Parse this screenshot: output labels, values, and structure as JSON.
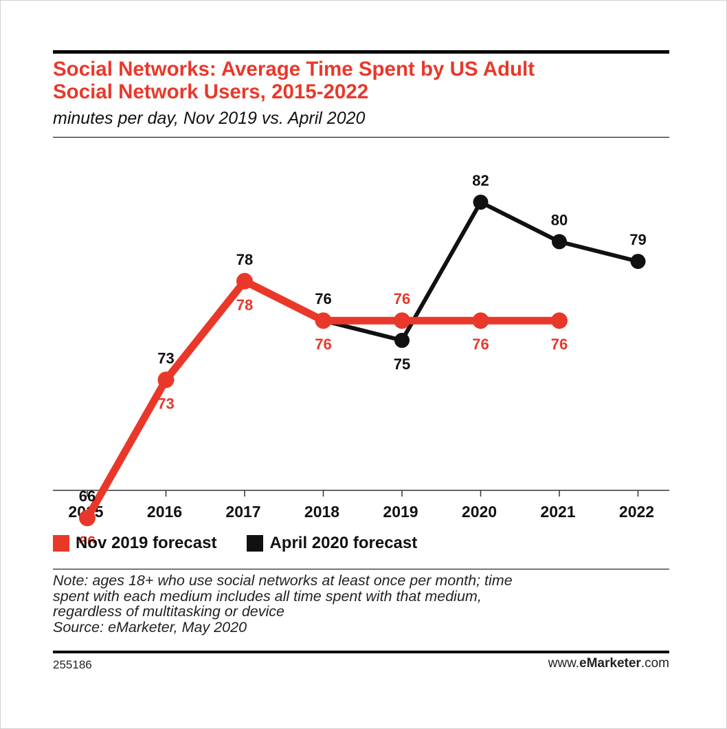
{
  "title_lines": [
    "Social Networks: Average Time Spent by US Adult",
    "Social Network Users, 2015-2022"
  ],
  "subtitle": "minutes per day, Nov 2019 vs. April 2020",
  "colors": {
    "red": "#e9382a",
    "black": "#111111",
    "rule": "#000000"
  },
  "chart_data": {
    "type": "line",
    "title": "Social Networks: Average Time Spent by US Adult Social Network Users, 2015-2022",
    "subtitle": "minutes per day, Nov 2019 vs. April 2020",
    "x": [
      "2015",
      "2016",
      "2017",
      "2018",
      "2019",
      "2020",
      "2021",
      "2022"
    ],
    "series": [
      {
        "name": "Nov 2019 forecast",
        "color": "#e9382a",
        "values": [
          66,
          73,
          78,
          76,
          76,
          76,
          76,
          null
        ]
      },
      {
        "name": "April 2020 forecast",
        "color": "#111111",
        "values": [
          66,
          73,
          78,
          76,
          75,
          82,
          80,
          79
        ]
      }
    ],
    "ylim": [
      40,
      90
    ],
    "grid": false,
    "legend": "bottom-left"
  },
  "legend": [
    {
      "label": "Nov 2019 forecast",
      "color": "#e9382a"
    },
    {
      "label": "April 2020 forecast",
      "color": "#111111"
    }
  ],
  "note_lines": [
    "Note: ages 18+ who use social networks at least once per month; time",
    "spent with each medium includes all time spent with that medium,",
    "regardless of multitasking or device",
    "Source: eMarketer, May 2020"
  ],
  "footer": {
    "id": "255186",
    "site_prefix": "www.",
    "site_brand": "eMarketer",
    "site_suffix": ".com"
  }
}
